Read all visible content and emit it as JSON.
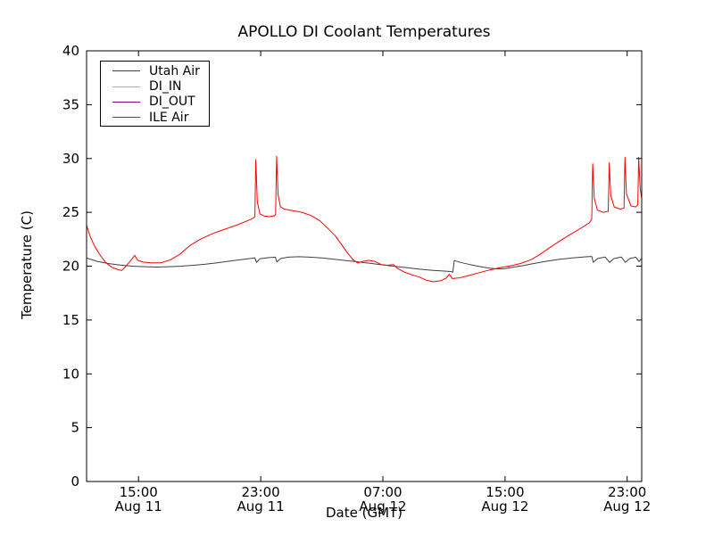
{
  "chart_data": {
    "type": "line",
    "title": "APOLLO DI Coolant Temperatures",
    "xlabel": "Date (GMT)",
    "ylabel": "Temperature (C)",
    "x_unit": "hours since Aug 11 00:00 GMT",
    "xlim": [
      11.6,
      47.95
    ],
    "ylim": [
      0,
      40
    ],
    "grid": false,
    "legend_position": "upper left",
    "y_ticks": [
      0,
      5,
      10,
      15,
      20,
      25,
      30,
      35,
      40
    ],
    "x_ticks": [
      {
        "hour": 15,
        "time": "15:00",
        "date": "Aug 11"
      },
      {
        "hour": 23,
        "time": "23:00",
        "date": "Aug 11"
      },
      {
        "hour": 31,
        "time": "07:00",
        "date": "Aug 12"
      },
      {
        "hour": 39,
        "time": "15:00",
        "date": "Aug 12"
      },
      {
        "hour": 47,
        "time": "23:00",
        "date": "Aug 12"
      }
    ],
    "series": [
      {
        "name": "Utah Air",
        "color": "#404040",
        "points": [
          [
            11.6,
            20.75
          ],
          [
            12.3,
            20.45
          ],
          [
            13.0,
            20.25
          ],
          [
            13.8,
            20.1
          ],
          [
            14.6,
            20.0
          ],
          [
            15.4,
            19.95
          ],
          [
            16.2,
            19.92
          ],
          [
            17.0,
            19.95
          ],
          [
            17.8,
            20.0
          ],
          [
            18.6,
            20.08
          ],
          [
            19.4,
            20.18
          ],
          [
            20.2,
            20.32
          ],
          [
            21.0,
            20.48
          ],
          [
            21.8,
            20.62
          ],
          [
            22.4,
            20.72
          ],
          [
            22.62,
            20.78
          ],
          [
            22.72,
            20.35
          ],
          [
            22.95,
            20.68
          ],
          [
            23.4,
            20.78
          ],
          [
            23.96,
            20.84
          ],
          [
            24.06,
            20.4
          ],
          [
            24.3,
            20.7
          ],
          [
            24.8,
            20.84
          ],
          [
            25.5,
            20.88
          ],
          [
            26.2,
            20.84
          ],
          [
            27.0,
            20.76
          ],
          [
            27.8,
            20.65
          ],
          [
            28.6,
            20.52
          ],
          [
            29.4,
            20.4
          ],
          [
            30.2,
            20.26
          ],
          [
            31.0,
            20.12
          ],
          [
            31.8,
            19.98
          ],
          [
            32.6,
            19.85
          ],
          [
            33.4,
            19.72
          ],
          [
            34.2,
            19.62
          ],
          [
            34.9,
            19.55
          ],
          [
            35.45,
            19.5
          ],
          [
            35.58,
            19.44
          ],
          [
            35.68,
            20.52
          ],
          [
            36.1,
            20.35
          ],
          [
            36.7,
            20.15
          ],
          [
            37.4,
            19.95
          ],
          [
            38.0,
            19.82
          ],
          [
            38.5,
            19.74
          ],
          [
            39.0,
            19.78
          ],
          [
            39.6,
            19.92
          ],
          [
            40.3,
            20.08
          ],
          [
            41.0,
            20.28
          ],
          [
            41.8,
            20.48
          ],
          [
            42.6,
            20.64
          ],
          [
            43.4,
            20.76
          ],
          [
            44.2,
            20.86
          ],
          [
            44.68,
            20.9
          ],
          [
            44.78,
            20.35
          ],
          [
            45.05,
            20.7
          ],
          [
            45.55,
            20.85
          ],
          [
            45.85,
            20.35
          ],
          [
            46.12,
            20.7
          ],
          [
            46.62,
            20.85
          ],
          [
            46.88,
            20.35
          ],
          [
            47.16,
            20.7
          ],
          [
            47.56,
            20.84
          ],
          [
            47.78,
            20.42
          ],
          [
            47.95,
            20.75
          ]
        ]
      },
      {
        "name": "DI_IN",
        "color": "#ffa500",
        "points": []
      },
      {
        "name": "DI_OUT",
        "color": "#7f007f",
        "points": []
      },
      {
        "name": "ILE Air",
        "color": "#ff0000",
        "points": [
          [
            11.6,
            23.8
          ],
          [
            11.85,
            22.7
          ],
          [
            12.15,
            21.8
          ],
          [
            12.5,
            21.0
          ],
          [
            12.85,
            20.35
          ],
          [
            13.25,
            19.9
          ],
          [
            13.65,
            19.68
          ],
          [
            13.9,
            19.6
          ],
          [
            14.05,
            19.8
          ],
          [
            14.45,
            20.45
          ],
          [
            14.75,
            21.0
          ],
          [
            14.95,
            20.55
          ],
          [
            15.3,
            20.38
          ],
          [
            15.9,
            20.3
          ],
          [
            16.5,
            20.32
          ],
          [
            17.1,
            20.6
          ],
          [
            17.7,
            21.1
          ],
          [
            18.35,
            21.9
          ],
          [
            19.05,
            22.5
          ],
          [
            19.8,
            23.0
          ],
          [
            20.6,
            23.4
          ],
          [
            21.4,
            23.8
          ],
          [
            22.1,
            24.2
          ],
          [
            22.5,
            24.45
          ],
          [
            22.62,
            24.6
          ],
          [
            22.68,
            29.9
          ],
          [
            22.78,
            26.0
          ],
          [
            22.95,
            24.85
          ],
          [
            23.25,
            24.65
          ],
          [
            23.6,
            24.6
          ],
          [
            23.9,
            24.68
          ],
          [
            23.98,
            24.8
          ],
          [
            24.04,
            30.2
          ],
          [
            24.14,
            26.6
          ],
          [
            24.3,
            25.5
          ],
          [
            24.55,
            25.3
          ],
          [
            25.1,
            25.15
          ],
          [
            25.7,
            25.0
          ],
          [
            26.3,
            24.7
          ],
          [
            26.9,
            24.2
          ],
          [
            27.4,
            23.5
          ],
          [
            27.9,
            22.8
          ],
          [
            28.35,
            21.9
          ],
          [
            28.75,
            21.1
          ],
          [
            29.05,
            20.6
          ],
          [
            29.35,
            20.3
          ],
          [
            29.7,
            20.45
          ],
          [
            30.1,
            20.55
          ],
          [
            30.5,
            20.42
          ],
          [
            30.9,
            20.15
          ],
          [
            31.3,
            20.08
          ],
          [
            31.7,
            20.15
          ],
          [
            31.95,
            19.8
          ],
          [
            32.4,
            19.45
          ],
          [
            32.9,
            19.2
          ],
          [
            33.4,
            18.98
          ],
          [
            33.85,
            18.7
          ],
          [
            34.3,
            18.55
          ],
          [
            34.8,
            18.65
          ],
          [
            35.15,
            18.9
          ],
          [
            35.35,
            19.25
          ],
          [
            35.55,
            18.85
          ],
          [
            35.95,
            18.9
          ],
          [
            36.55,
            19.1
          ],
          [
            37.2,
            19.35
          ],
          [
            38.0,
            19.65
          ],
          [
            38.8,
            19.9
          ],
          [
            39.45,
            20.05
          ],
          [
            40.0,
            20.25
          ],
          [
            40.7,
            20.6
          ],
          [
            41.3,
            21.1
          ],
          [
            42.0,
            21.8
          ],
          [
            42.7,
            22.45
          ],
          [
            43.4,
            23.05
          ],
          [
            44.05,
            23.6
          ],
          [
            44.5,
            24.0
          ],
          [
            44.68,
            24.35
          ],
          [
            44.74,
            29.5
          ],
          [
            44.84,
            26.3
          ],
          [
            45.05,
            25.2
          ],
          [
            45.45,
            25.0
          ],
          [
            45.76,
            25.1
          ],
          [
            45.82,
            29.6
          ],
          [
            45.92,
            26.6
          ],
          [
            46.15,
            25.5
          ],
          [
            46.55,
            25.3
          ],
          [
            46.79,
            25.4
          ],
          [
            46.85,
            30.1
          ],
          [
            46.95,
            26.7
          ],
          [
            47.25,
            25.6
          ],
          [
            47.55,
            25.5
          ],
          [
            47.69,
            25.7
          ],
          [
            47.75,
            30.1
          ],
          [
            47.85,
            27.2
          ],
          [
            47.95,
            26.3
          ]
        ]
      }
    ]
  }
}
